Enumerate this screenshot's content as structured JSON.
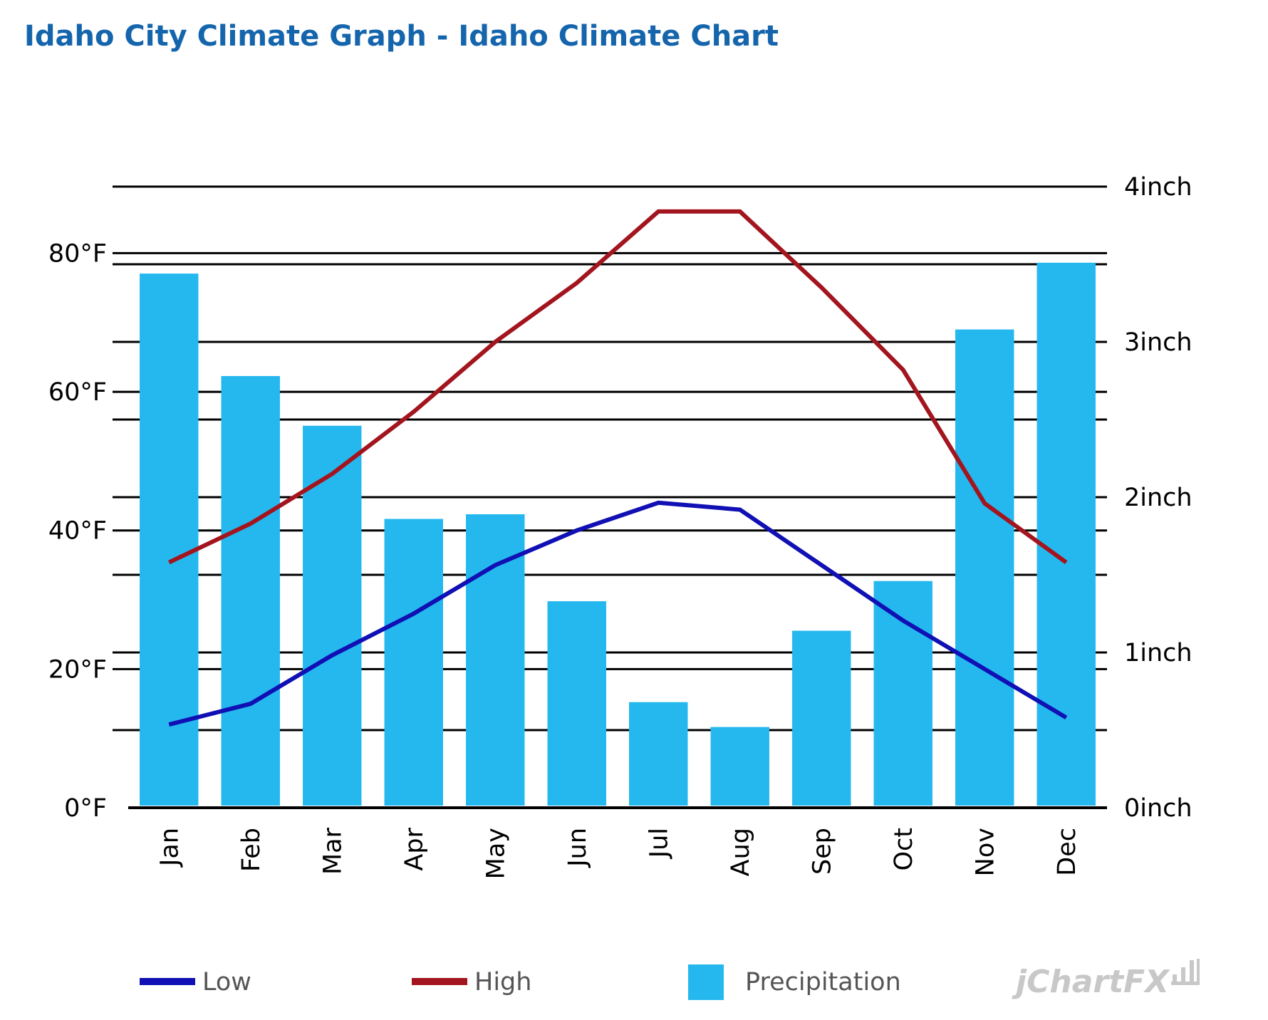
{
  "chart_data": {
    "type": "bar",
    "title": "Idaho City Climate Graph - Idaho Climate Chart",
    "categories": [
      "Jan",
      "Feb",
      "Mar",
      "Apr",
      "May",
      "Jun",
      "Jul",
      "Aug",
      "Sep",
      "Oct",
      "Nov",
      "Dec"
    ],
    "series": [
      {
        "name": "Low",
        "type": "line",
        "axis": "left",
        "color": "#1010b4",
        "values": [
          12,
          15,
          22,
          28,
          35,
          40,
          44,
          43,
          35,
          27,
          20,
          13
        ]
      },
      {
        "name": "High",
        "type": "line",
        "axis": "right",
        "color": "#a3151e",
        "values": [
          1.58,
          1.83,
          2.15,
          2.55,
          3.0,
          3.38,
          3.84,
          3.84,
          3.35,
          2.82,
          1.96,
          1.58
        ]
      },
      {
        "name": "Precipitation",
        "type": "bar",
        "axis": "right",
        "color": "#25b8ef",
        "values": [
          3.44,
          2.78,
          2.46,
          1.86,
          1.89,
          1.33,
          0.68,
          0.52,
          1.14,
          1.46,
          3.08,
          3.51
        ]
      }
    ],
    "left_axis": {
      "ticks": [
        "0°F",
        "20°F",
        "40°F",
        "60°F",
        "80°F"
      ],
      "tick_values": [
        0,
        20,
        40,
        60,
        80
      ],
      "ylim": [
        0,
        89.6
      ]
    },
    "right_axis": {
      "ticks": [
        "0inch",
        "1inch",
        "2inch",
        "3inch",
        "4inch"
      ],
      "tick_values": [
        0,
        1,
        2,
        3,
        4
      ],
      "ylim": [
        0,
        4
      ]
    },
    "grid": true,
    "legend": {
      "position": "bottom",
      "entries": [
        "Low",
        "High",
        "Precipitation"
      ]
    }
  },
  "branding": {
    "text": "jChartFX"
  },
  "colors": {
    "title": "#1565ad",
    "grid": "#000000",
    "low": "#1010b4",
    "high": "#a3151e",
    "precipitation": "#25b8ef"
  }
}
